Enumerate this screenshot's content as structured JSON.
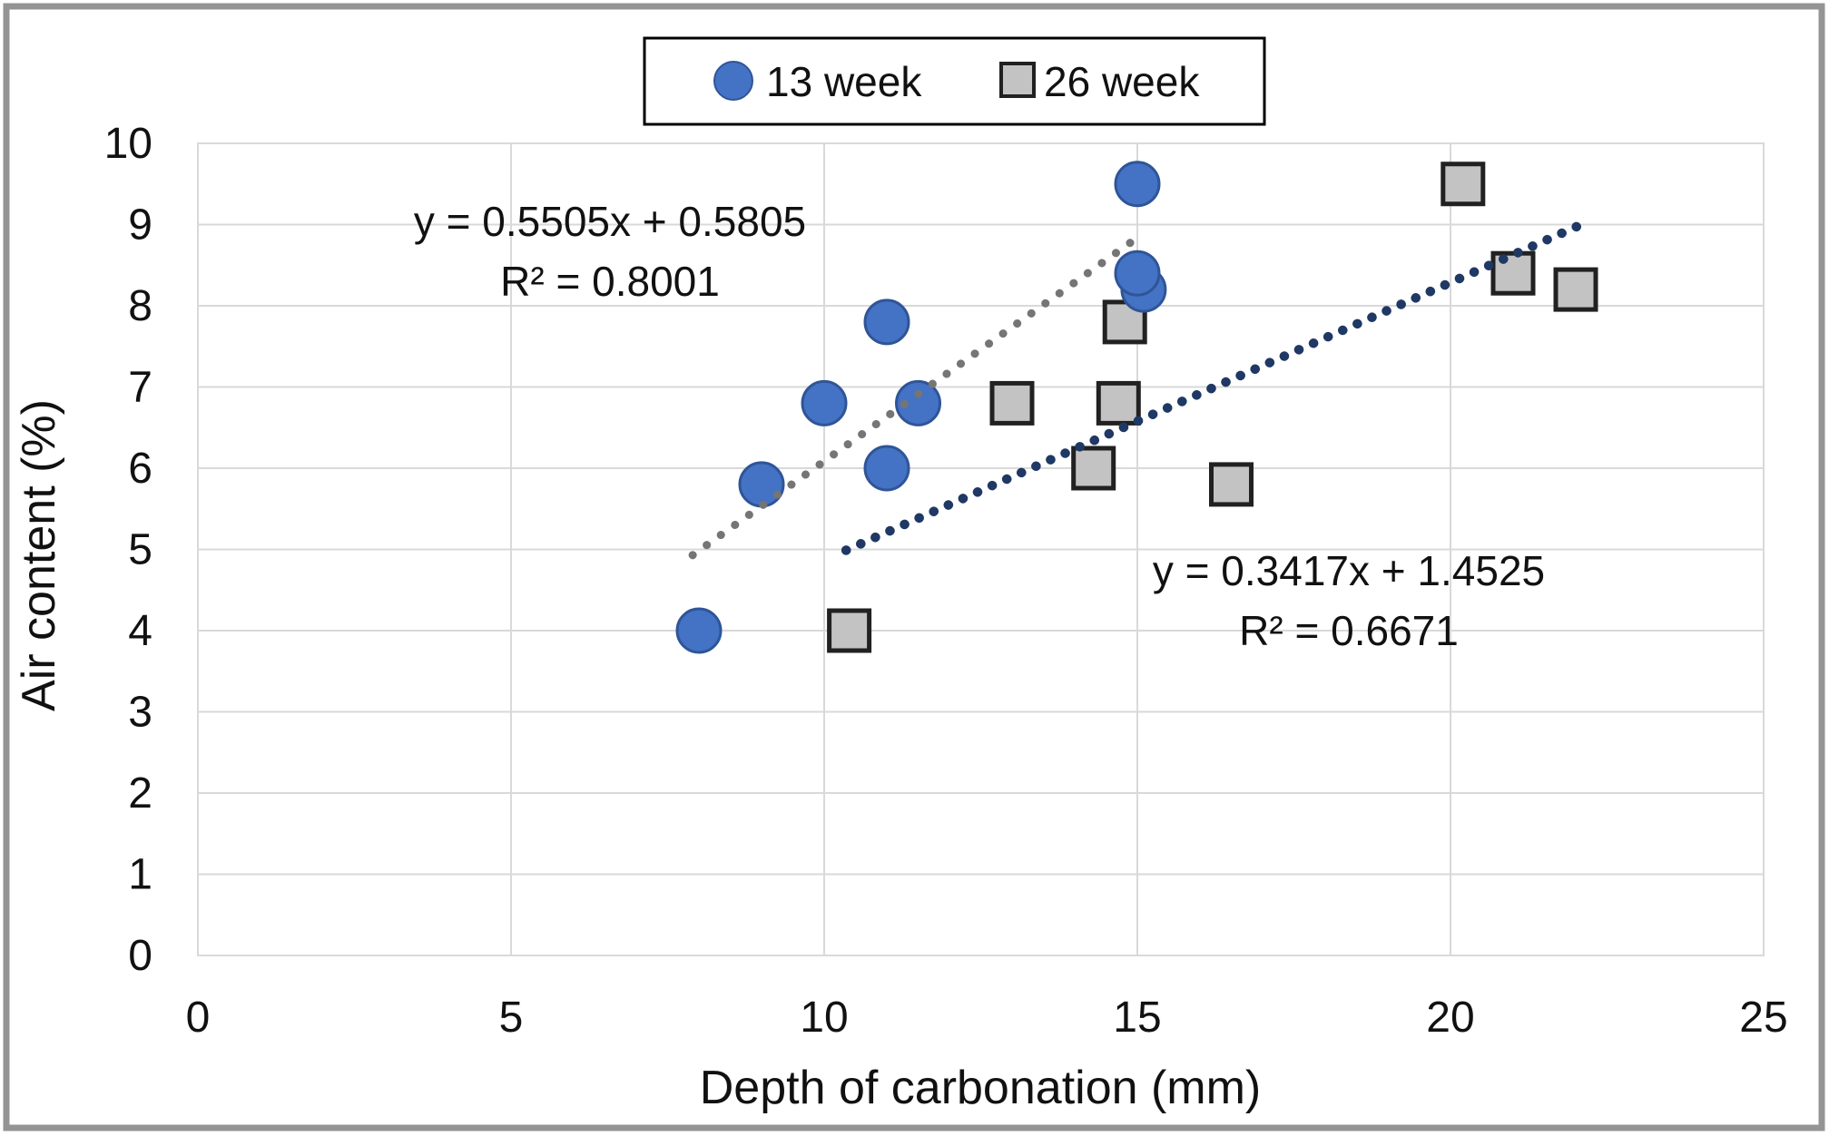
{
  "chart_data": {
    "type": "scatter",
    "title": "",
    "xlabel": "Depth of carbonation (mm)",
    "ylabel": "Air content (%)",
    "xlim": [
      0,
      25
    ],
    "ylim": [
      0,
      10
    ],
    "x_ticks": [
      0,
      5,
      10,
      15,
      20,
      25
    ],
    "y_ticks": [
      0,
      1,
      2,
      3,
      4,
      5,
      6,
      7,
      8,
      9,
      10
    ],
    "grid": true,
    "legend_position": "top-center",
    "series": [
      {
        "name": "13 week",
        "marker": "circle",
        "fill": "#4472C4",
        "border": "#2F5597",
        "points": [
          [
            8,
            4
          ],
          [
            9,
            5.8
          ],
          [
            10,
            6.8
          ],
          [
            11,
            6
          ],
          [
            11,
            7.8
          ],
          [
            11.5,
            6.8
          ],
          [
            15,
            9.5
          ],
          [
            15.1,
            8.2
          ],
          [
            15,
            8.4
          ]
        ]
      },
      {
        "name": "26 week",
        "marker": "square",
        "fill": "#C3C3C3",
        "border": "#212121",
        "points": [
          [
            10.4,
            4
          ],
          [
            13,
            6.8
          ],
          [
            14.3,
            6
          ],
          [
            14.7,
            6.8
          ],
          [
            14.8,
            7.8
          ],
          [
            16.5,
            5.8
          ],
          [
            20.2,
            9.5
          ],
          [
            21,
            8.4
          ],
          [
            22,
            8.2
          ]
        ]
      }
    ],
    "trendlines": [
      {
        "series": "13 week",
        "slope": 0.5505,
        "intercept": 0.5805,
        "x_start": 7.9,
        "x_end": 15.1,
        "color": "#757575",
        "equation": "y = 0.5505x + 0.5805",
        "r_squared": "R² = 0.8001",
        "label_cx": 672,
        "label_baseline1": 260,
        "label_baseline2": 326
      },
      {
        "series": "26 week",
        "slope": 0.3417,
        "intercept": 1.4525,
        "x_start": 10.35,
        "x_end": 22.2,
        "color": "#1F3864",
        "equation": "y = 0.3417x + 1.4525",
        "r_squared": "R² = 0.6671",
        "label_cx": 1486,
        "label_baseline1": 645,
        "label_baseline2": 711
      }
    ]
  },
  "legend": {
    "items": [
      {
        "label": "13 week",
        "marker": "circle"
      },
      {
        "label": "26 week",
        "marker": "square"
      }
    ]
  },
  "colors": {
    "blue_fill": "#4472C4",
    "blue_border": "#2F5597",
    "gray_fill": "#C3C3C3",
    "gray_border": "#212121",
    "trend_gray": "#757575",
    "trend_navy": "#1F3864",
    "gridline": "#D9D9D9",
    "text": "#111111",
    "frame": "#949494",
    "legend_border": "#000000",
    "background": "#FFFFFF"
  }
}
